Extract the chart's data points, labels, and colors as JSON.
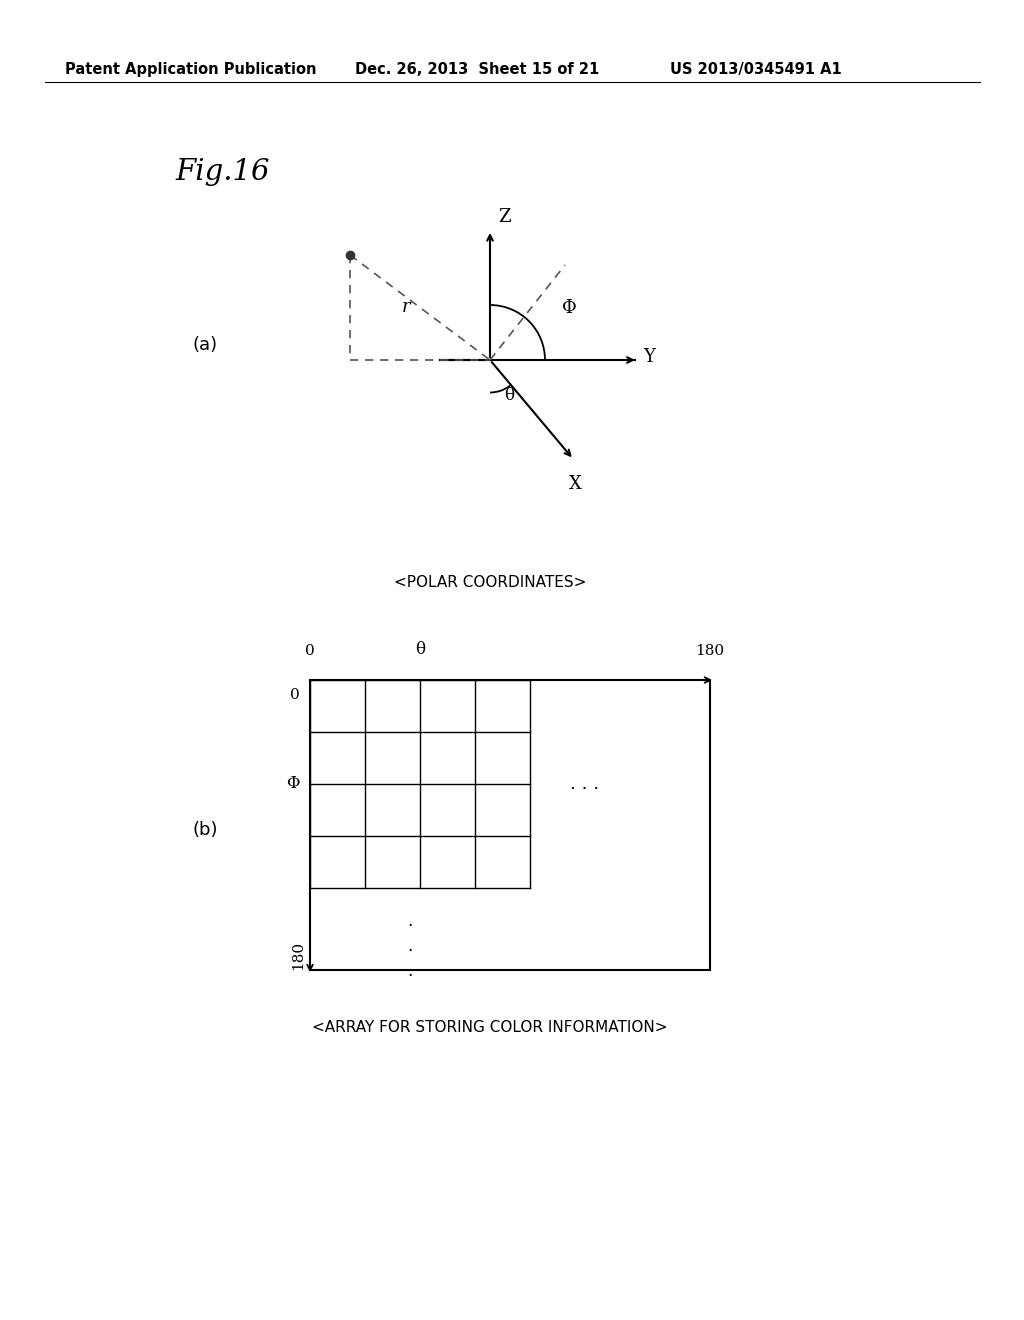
{
  "bg_color": "#ffffff",
  "text_color": "#000000",
  "line_color": "#000000",
  "dashed_color": "#555555",
  "header_left": "Patent Application Publication",
  "header_mid": "Dec. 26, 2013  Sheet 15 of 21",
  "header_right": "US 2013/0345491 A1",
  "fig_label": "Fig.16",
  "label_a": "(a)",
  "label_b": "(b)",
  "caption_a": "<POLAR COORDINATES>",
  "caption_b": "<ARRAY FOR STORING COLOR INFORMATION>",
  "grid_label_0_top": "0",
  "grid_label_theta_top": "θ",
  "grid_label_180_top": "180",
  "grid_label_0_left": "0",
  "grid_label_phi_left": "Φ",
  "grid_label_180_left": "180"
}
